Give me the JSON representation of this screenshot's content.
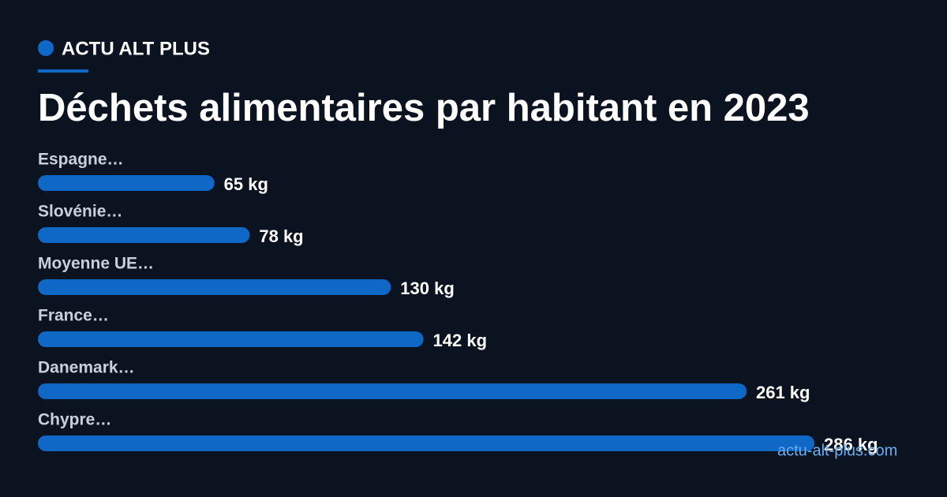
{
  "brand": "ACTU ALT PLUS",
  "watermark": "actu-alt-plus.com",
  "chart_data": {
    "type": "bar",
    "orientation": "horizontal",
    "title": "Déchets alimentaires par habitant en 2023",
    "categories": [
      "Espagne…",
      "Slovénie…",
      "Moyenne UE…",
      "France…",
      "Danemark…",
      "Chypre…"
    ],
    "values": [
      65,
      78,
      130,
      142,
      261,
      286
    ],
    "value_labels": [
      "65 kg",
      "78 kg",
      "130 kg",
      "142 kg",
      "261 kg",
      "286 kg"
    ],
    "color": "#0f67c6"
  }
}
